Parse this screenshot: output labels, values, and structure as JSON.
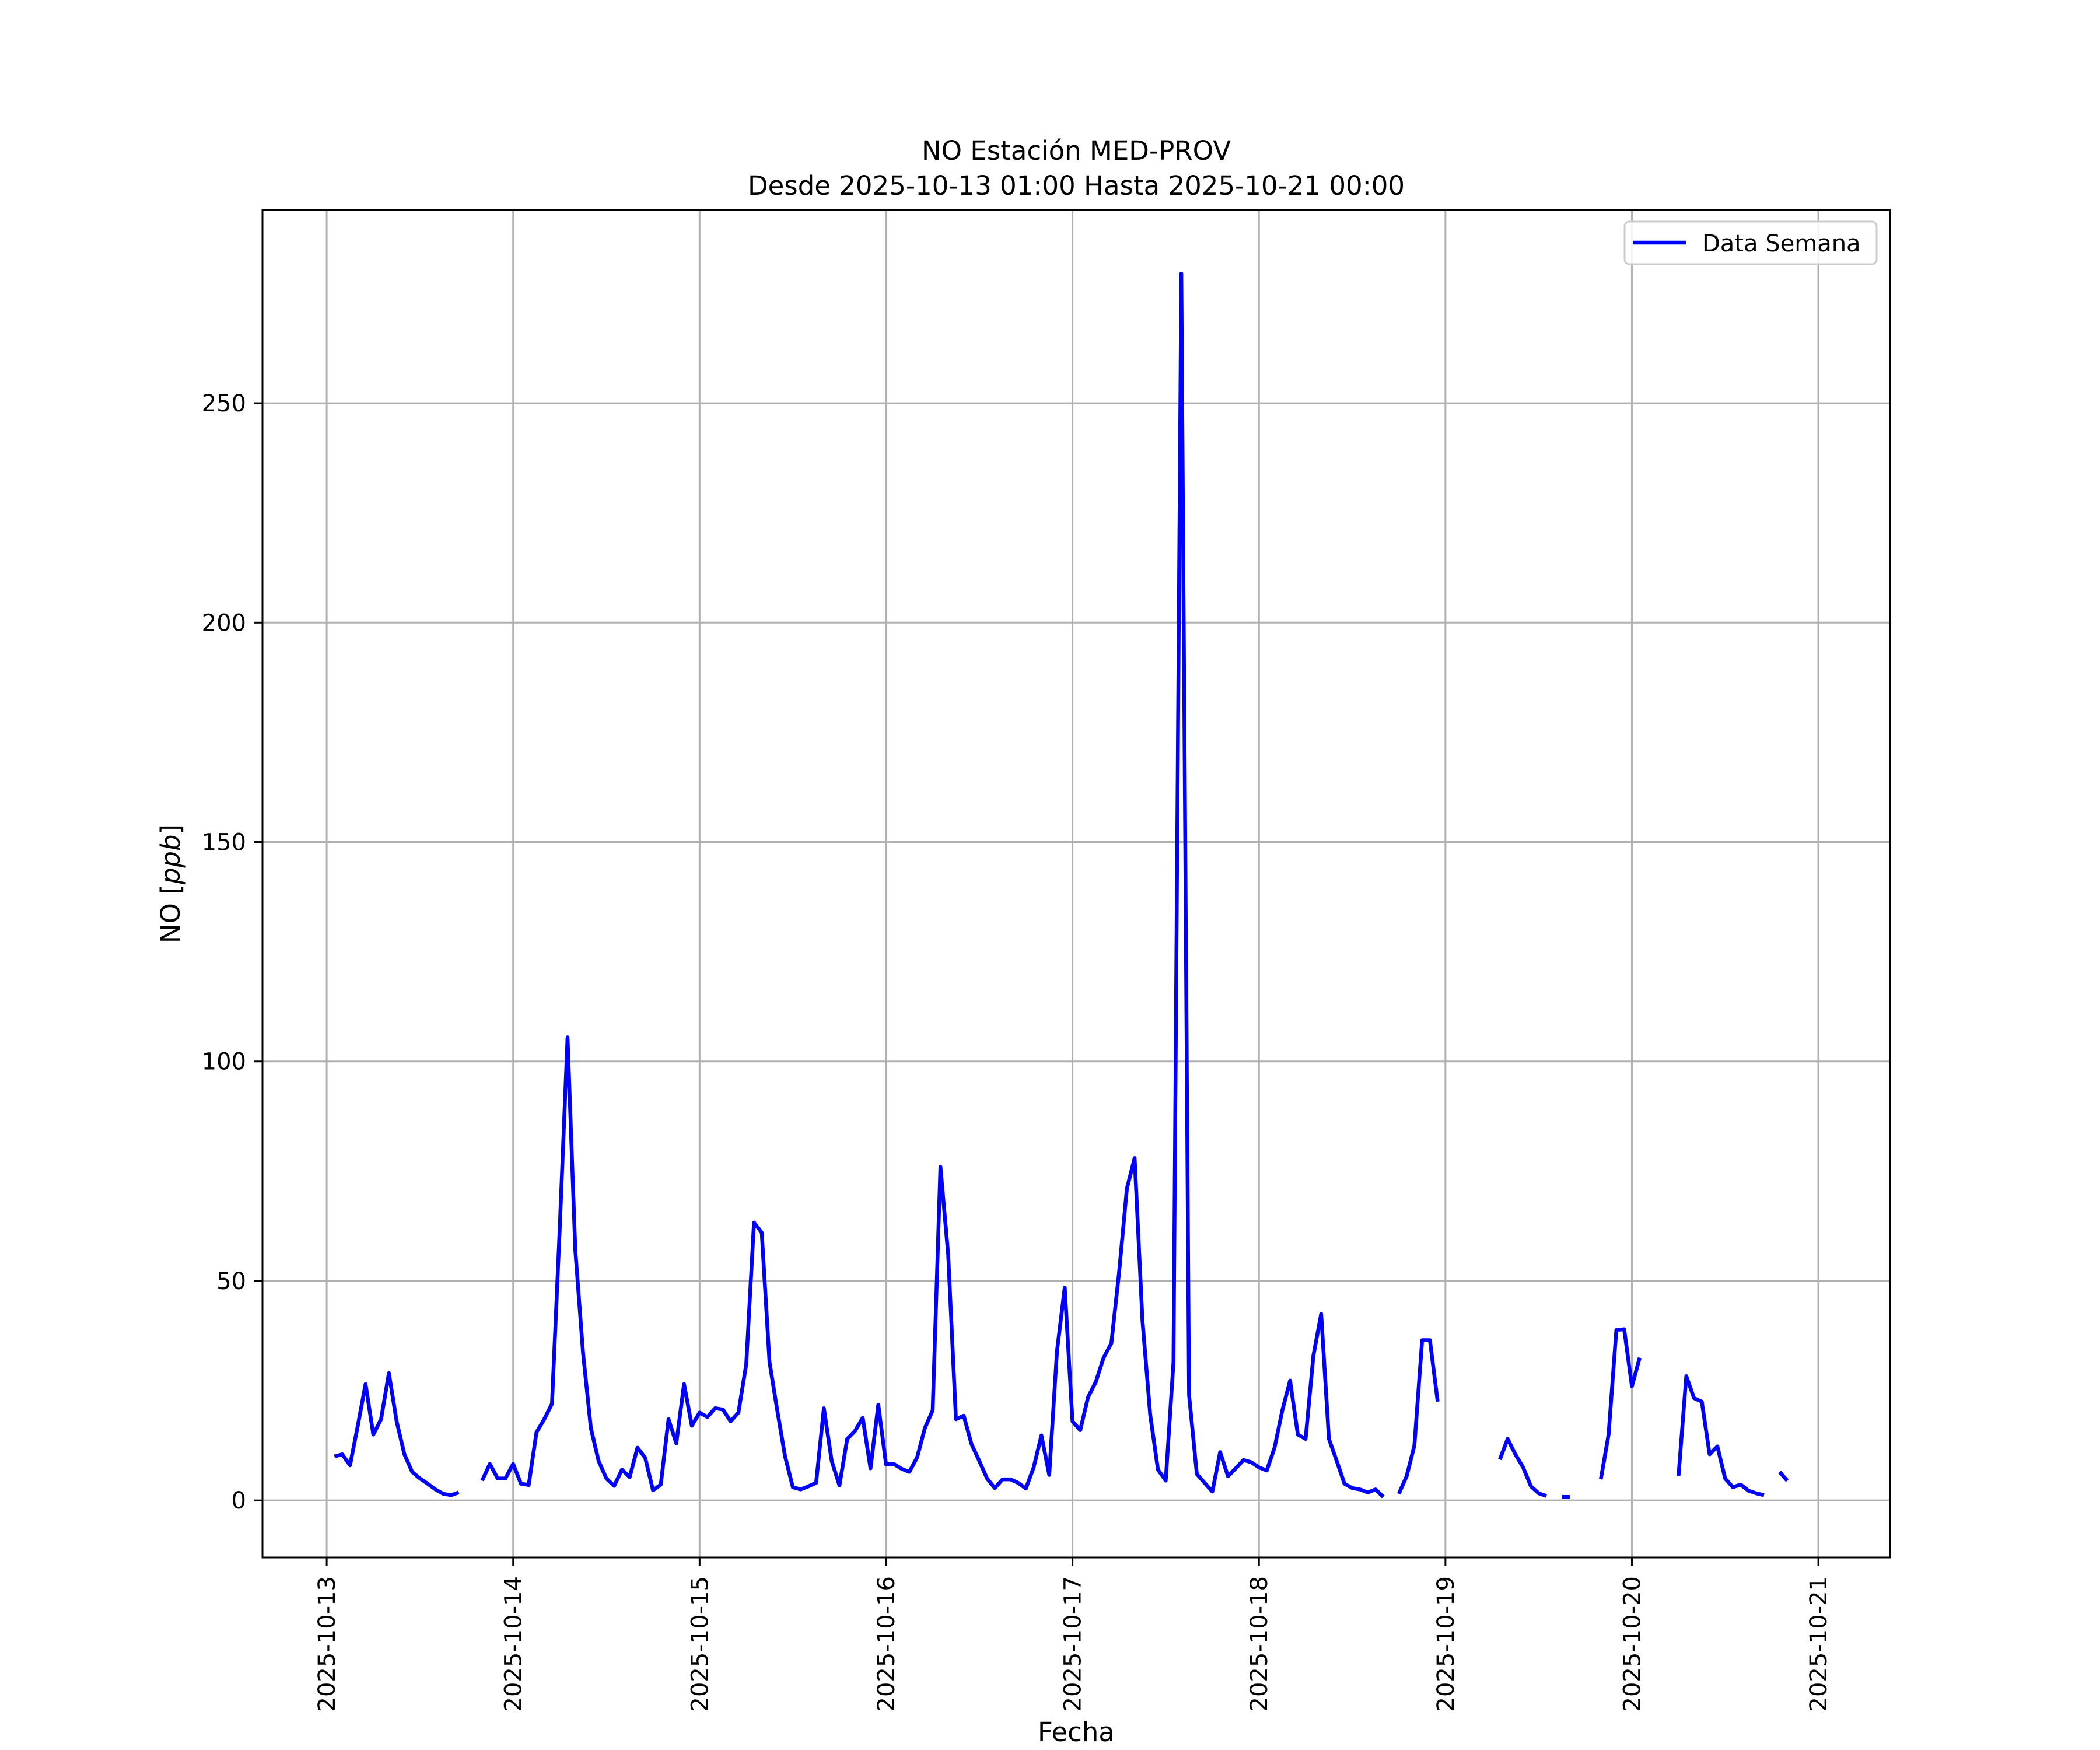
{
  "chart_data": {
    "type": "line",
    "title": "NO Estación MED-PROV",
    "subtitle": "Desde 2025-10-13 01:00 Hasta 2025-10-21 00:00",
    "xlabel": "Fecha",
    "ylabel_main": "NO [",
    "ylabel_italic": "ppb",
    "ylabel_end": "]",
    "ylim": [
      -13,
      294
    ],
    "y_ticks": [
      0,
      50,
      100,
      150,
      200,
      250
    ],
    "x_ticks": [
      "2025-10-13",
      "2025-10-14",
      "2025-10-15",
      "2025-10-16",
      "2025-10-17",
      "2025-10-18",
      "2025-10-19",
      "2025-10-20",
      "2025-10-21"
    ],
    "grid": true,
    "legend_position": "top-right",
    "line_color": "#0000ff",
    "series": [
      {
        "name": "Data Semana",
        "segments": [
          [
            [
              "2025-10-13 01:00",
              10
            ],
            [
              "2025-10-13 02:00",
              10.5
            ],
            [
              "2025-10-13 03:00",
              8
            ],
            [
              "2025-10-13 04:00",
              17
            ],
            [
              "2025-10-13 05:00",
              26.5
            ],
            [
              "2025-10-13 06:00",
              15
            ],
            [
              "2025-10-13 07:00",
              18.5
            ],
            [
              "2025-10-13 08:00",
              29
            ],
            [
              "2025-10-13 09:00",
              18
            ],
            [
              "2025-10-13 10:00",
              10.5
            ],
            [
              "2025-10-13 11:00",
              6.5
            ],
            [
              "2025-10-13 12:00",
              5
            ],
            [
              "2025-10-13 13:00",
              3.8
            ],
            [
              "2025-10-13 14:00",
              2.5
            ],
            [
              "2025-10-13 15:00",
              1.5
            ],
            [
              "2025-10-13 16:00",
              1.2
            ],
            [
              "2025-10-13 17:00",
              1.8
            ]
          ],
          [
            [
              "2025-10-13 20:00",
              4.5
            ],
            [
              "2025-10-13 21:00",
              8.3
            ],
            [
              "2025-10-13 22:00",
              5
            ],
            [
              "2025-10-13 23:00",
              5
            ],
            [
              "2025-10-14 00:00",
              8.3
            ],
            [
              "2025-10-14 01:00",
              3.8
            ],
            [
              "2025-10-14 02:00",
              3.5
            ],
            [
              "2025-10-14 03:00",
              15.5
            ],
            [
              "2025-10-14 04:00",
              18.5
            ],
            [
              "2025-10-14 05:00",
              22
            ],
            [
              "2025-10-14 06:00",
              62
            ],
            [
              "2025-10-14 07:00",
              105.5
            ],
            [
              "2025-10-14 08:00",
              57
            ],
            [
              "2025-10-14 09:00",
              33.5
            ],
            [
              "2025-10-14 10:00",
              16.5
            ],
            [
              "2025-10-14 11:00",
              9
            ],
            [
              "2025-10-14 12:00",
              5
            ],
            [
              "2025-10-14 13:00",
              3.3
            ],
            [
              "2025-10-14 14:00",
              7
            ],
            [
              "2025-10-14 15:00",
              5.3
            ],
            [
              "2025-10-14 16:00",
              12
            ],
            [
              "2025-10-14 17:00",
              9.7
            ],
            [
              "2025-10-14 18:00",
              2.3
            ],
            [
              "2025-10-14 19:00",
              3.6
            ],
            [
              "2025-10-14 20:00",
              18.5
            ],
            [
              "2025-10-14 21:00",
              13
            ],
            [
              "2025-10-14 22:00",
              26.5
            ],
            [
              "2025-10-14 23:00",
              17
            ],
            [
              "2025-10-15 00:00",
              20
            ],
            [
              "2025-10-15 01:00",
              19
            ],
            [
              "2025-10-15 02:00",
              21
            ],
            [
              "2025-10-15 03:00",
              20.7
            ],
            [
              "2025-10-15 04:00",
              18
            ],
            [
              "2025-10-15 05:00",
              20
            ],
            [
              "2025-10-15 06:00",
              31
            ],
            [
              "2025-10-15 07:00",
              63.3
            ],
            [
              "2025-10-15 08:00",
              61
            ],
            [
              "2025-10-15 09:00",
              31.5
            ],
            [
              "2025-10-15 10:00",
              20.5
            ],
            [
              "2025-10-15 11:00",
              10
            ],
            [
              "2025-10-15 12:00",
              3
            ],
            [
              "2025-10-15 13:00",
              2.5
            ],
            [
              "2025-10-15 14:00",
              3.2
            ],
            [
              "2025-10-15 15:00",
              4
            ],
            [
              "2025-10-15 16:00",
              21
            ],
            [
              "2025-10-15 17:00",
              9
            ],
            [
              "2025-10-15 18:00",
              3.4
            ],
            [
              "2025-10-15 19:00",
              14
            ],
            [
              "2025-10-15 20:00",
              15.8
            ],
            [
              "2025-10-15 21:00",
              18.8
            ],
            [
              "2025-10-15 22:00",
              7.3
            ],
            [
              "2025-10-15 23:00",
              21.8
            ],
            [
              "2025-10-16 00:00",
              8.2
            ],
            [
              "2025-10-16 01:00",
              8.3
            ],
            [
              "2025-10-16 02:00",
              7.2
            ],
            [
              "2025-10-16 03:00",
              6.5
            ],
            [
              "2025-10-16 04:00",
              9.8
            ],
            [
              "2025-10-16 05:00",
              16.5
            ],
            [
              "2025-10-16 06:00",
              20.5
            ],
            [
              "2025-10-16 07:00",
              76
            ],
            [
              "2025-10-16 08:00",
              56
            ],
            [
              "2025-10-16 09:00",
              18.5
            ],
            [
              "2025-10-16 10:00",
              19.3
            ],
            [
              "2025-10-16 11:00",
              12.8
            ],
            [
              "2025-10-16 12:00",
              9
            ],
            [
              "2025-10-16 13:00",
              5
            ],
            [
              "2025-10-16 14:00",
              2.8
            ],
            [
              "2025-10-16 15:00",
              4.8
            ],
            [
              "2025-10-16 16:00",
              4.8
            ],
            [
              "2025-10-16 17:00",
              4
            ],
            [
              "2025-10-16 18:00",
              2.7
            ],
            [
              "2025-10-16 19:00",
              7.5
            ],
            [
              "2025-10-16 20:00",
              14.8
            ],
            [
              "2025-10-16 21:00",
              5.8
            ],
            [
              "2025-10-16 22:00",
              34
            ],
            [
              "2025-10-16 23:00",
              48.5
            ],
            [
              "2025-10-17 00:00",
              18
            ],
            [
              "2025-10-17 01:00",
              16
            ],
            [
              "2025-10-17 02:00",
              23.5
            ],
            [
              "2025-10-17 03:00",
              27
            ],
            [
              "2025-10-17 04:00",
              32.5
            ],
            [
              "2025-10-17 05:00",
              35.8
            ],
            [
              "2025-10-17 06:00",
              52
            ],
            [
              "2025-10-17 07:00",
              71
            ],
            [
              "2025-10-17 08:00",
              78
            ],
            [
              "2025-10-17 09:00",
              41
            ],
            [
              "2025-10-17 10:00",
              19.5
            ],
            [
              "2025-10-17 11:00",
              7
            ],
            [
              "2025-10-17 12:00",
              4.5
            ],
            [
              "2025-10-17 13:00",
              31.5
            ],
            [
              "2025-10-17 14:00",
              279.5
            ],
            [
              "2025-10-17 15:00",
              24
            ],
            [
              "2025-10-17 16:00",
              6
            ],
            [
              "2025-10-17 17:00",
              4
            ],
            [
              "2025-10-17 18:00",
              2
            ],
            [
              "2025-10-17 19:00",
              11
            ],
            [
              "2025-10-17 20:00",
              5.5
            ],
            [
              "2025-10-17 21:00",
              7.3
            ],
            [
              "2025-10-17 22:00",
              9.2
            ],
            [
              "2025-10-17 23:00",
              8.7
            ],
            [
              "2025-10-18 00:00",
              7.5
            ],
            [
              "2025-10-18 01:00",
              6.8
            ],
            [
              "2025-10-18 02:00",
              12
            ],
            [
              "2025-10-18 03:00",
              20.5
            ],
            [
              "2025-10-18 04:00",
              27.3
            ],
            [
              "2025-10-18 05:00",
              15
            ],
            [
              "2025-10-18 06:00",
              14
            ],
            [
              "2025-10-18 07:00",
              33
            ],
            [
              "2025-10-18 08:00",
              42.5
            ],
            [
              "2025-10-18 09:00",
              14
            ],
            [
              "2025-10-18 10:00",
              9
            ],
            [
              "2025-10-18 11:00",
              3.8
            ],
            [
              "2025-10-18 12:00",
              2.8
            ],
            [
              "2025-10-18 13:00",
              2.5
            ],
            [
              "2025-10-18 14:00",
              1.8
            ],
            [
              "2025-10-18 15:00",
              2.5
            ],
            [
              "2025-10-18 16:00",
              0.8
            ]
          ],
          [
            [
              "2025-10-18 18:00",
              1.5
            ],
            [
              "2025-10-18 19:00",
              5.5
            ],
            [
              "2025-10-18 20:00",
              12.5
            ],
            [
              "2025-10-18 21:00",
              36.5
            ],
            [
              "2025-10-18 22:00",
              36.5
            ],
            [
              "2025-10-18 23:00",
              22.5
            ]
          ],
          [
            [
              "2025-10-19 07:00",
              9.3
            ],
            [
              "2025-10-19 08:00",
              14
            ],
            [
              "2025-10-19 09:00",
              10.5
            ],
            [
              "2025-10-19 10:00",
              7.5
            ],
            [
              "2025-10-19 11:00",
              3.2
            ],
            [
              "2025-10-19 12:00",
              1.6
            ],
            [
              "2025-10-19 13:00",
              1
            ]
          ],
          [
            [
              "2025-10-19 15:00",
              0.8
            ],
            [
              "2025-10-19 16:00",
              0.8
            ]
          ],
          [
            [
              "2025-10-19 20:00",
              4.8
            ],
            [
              "2025-10-19 21:00",
              15
            ],
            [
              "2025-10-19 22:00",
              38.8
            ],
            [
              "2025-10-19 23:00",
              39
            ],
            [
              "2025-10-20 00:00",
              26
            ],
            [
              "2025-10-20 01:00",
              32.5
            ]
          ],
          [
            [
              "2025-10-20 06:00",
              5.6
            ],
            [
              "2025-10-20 07:00",
              28.3
            ],
            [
              "2025-10-20 08:00",
              23.3
            ],
            [
              "2025-10-20 09:00",
              22.5
            ],
            [
              "2025-10-20 10:00",
              10.5
            ],
            [
              "2025-10-20 11:00",
              12.3
            ],
            [
              "2025-10-20 12:00",
              5
            ],
            [
              "2025-10-20 13:00",
              3
            ],
            [
              "2025-10-20 14:00",
              3.6
            ],
            [
              "2025-10-20 15:00",
              2.2
            ],
            [
              "2025-10-20 16:00",
              1.6
            ],
            [
              "2025-10-20 17:00",
              1.2
            ]
          ],
          [
            [
              "2025-10-20 19:00",
              6.5
            ],
            [
              "2025-10-20 20:00",
              4.5
            ]
          ]
        ]
      }
    ]
  }
}
